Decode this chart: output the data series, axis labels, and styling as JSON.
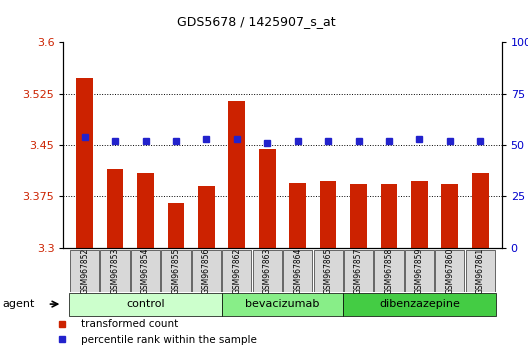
{
  "title": "GDS5678 / 1425907_s_at",
  "samples": [
    "GSM967852",
    "GSM967853",
    "GSM967854",
    "GSM967855",
    "GSM967856",
    "GSM967862",
    "GSM967863",
    "GSM967864",
    "GSM967865",
    "GSM967857",
    "GSM967858",
    "GSM967859",
    "GSM967860",
    "GSM967861"
  ],
  "bar_values": [
    3.548,
    3.415,
    3.41,
    3.365,
    3.39,
    3.515,
    3.445,
    3.395,
    3.398,
    3.393,
    3.393,
    3.398,
    3.393,
    3.41
  ],
  "dot_values": [
    54,
    52,
    52,
    52,
    53,
    53,
    51,
    52,
    52,
    52,
    52,
    53,
    52,
    52
  ],
  "ylim_left": [
    3.3,
    3.6
  ],
  "ylim_right": [
    0,
    100
  ],
  "yticks_left": [
    3.3,
    3.375,
    3.45,
    3.525,
    3.6
  ],
  "yticks_right": [
    0,
    25,
    50,
    75,
    100
  ],
  "ytick_labels_left": [
    "3.3",
    "3.375",
    "3.45",
    "3.525",
    "3.6"
  ],
  "ytick_labels_right": [
    "0",
    "25",
    "50",
    "75",
    "100%"
  ],
  "bar_color": "#cc2200",
  "dot_color": "#2222cc",
  "groups": [
    {
      "label": "control",
      "indices": [
        0,
        1,
        2,
        3,
        4
      ],
      "color": "#ccffcc"
    },
    {
      "label": "bevacizumab",
      "indices": [
        5,
        6,
        7,
        8
      ],
      "color": "#88ee88"
    },
    {
      "label": "dibenzazepine",
      "indices": [
        9,
        10,
        11,
        12,
        13
      ],
      "color": "#44cc44"
    }
  ],
  "agent_label": "agent",
  "legend_bar_label": "transformed count",
  "legend_dot_label": "percentile rank within the sample",
  "bg_color": "#ffffff",
  "plot_bg": "#ffffff",
  "tick_label_color_left": "#cc2200",
  "tick_label_color_right": "#0000cc",
  "xlabel_bg": "#d8d8d8"
}
